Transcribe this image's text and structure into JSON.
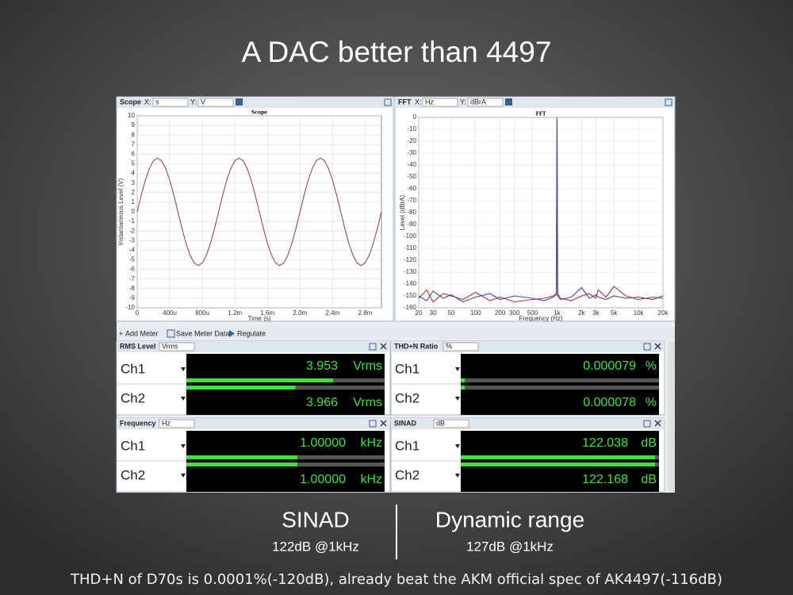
{
  "title": "A DAC better than 4497",
  "scope_panel": {
    "name": "Scope",
    "x_label": "X:",
    "x_unit": "s",
    "y_label": "Y:",
    "y_unit": "V"
  },
  "fft_panel": {
    "name": "FFT",
    "x_label": "X:",
    "x_unit": "Hz",
    "y_label": "Y:",
    "y_unit": "dBrA"
  },
  "chart_data": [
    {
      "type": "line",
      "title": "Scope",
      "x_axis_label": "Time (s)",
      "y_axis_label": "Instantaneous Level (V)",
      "x": [
        0,
        5e-05,
        0.0001,
        0.00015,
        0.0002,
        0.00025,
        0.0003,
        0.00035,
        0.0004,
        0.00045,
        0.0005,
        0.00055,
        0.0006,
        0.00065,
        0.0007,
        0.00075,
        0.0008,
        0.00085,
        0.0009,
        0.00095,
        0.001,
        0.00105,
        0.0011,
        0.00115,
        0.0012,
        0.00125,
        0.0013,
        0.00135,
        0.0014,
        0.00145,
        0.0015,
        0.00155,
        0.0016,
        0.00165,
        0.0017,
        0.00175,
        0.0018,
        0.00185,
        0.0019,
        0.00195,
        0.002,
        0.00205,
        0.0021,
        0.00215,
        0.0022,
        0.00225,
        0.0023,
        0.00235,
        0.0024,
        0.00245,
        0.0025,
        0.00255,
        0.0026,
        0.00265,
        0.0027,
        0.00275,
        0.0028,
        0.00285,
        0.0029,
        0.00295,
        0.003
      ],
      "series": [
        {
          "color": "#9c4a5a",
          "values": [
            0,
            1.73,
            3.29,
            4.53,
            5.33,
            5.6,
            5.33,
            4.53,
            3.29,
            1.73,
            0,
            -1.73,
            -3.29,
            -4.53,
            -5.33,
            -5.6,
            -5.33,
            -4.53,
            -3.29,
            -1.73,
            0,
            1.73,
            3.29,
            4.53,
            5.33,
            5.6,
            5.33,
            4.53,
            3.29,
            1.73,
            0,
            -1.73,
            -3.29,
            -4.53,
            -5.33,
            -5.6,
            -5.33,
            -4.53,
            -3.29,
            -1.73,
            0,
            1.73,
            3.29,
            4.53,
            5.33,
            5.6,
            5.33,
            4.53,
            3.29,
            1.73,
            0,
            -1.73,
            -3.29,
            -4.53,
            -5.33,
            -5.6,
            -5.33,
            -4.53,
            -3.29,
            -1.73,
            0
          ]
        }
      ],
      "xlim": [
        0,
        0.003
      ],
      "xticks": [
        0,
        {
          "value": 0.0004,
          "label": "400u"
        },
        {
          "value": 0.0008,
          "label": "800u"
        },
        {
          "value": 0.0012,
          "label": "1.2m"
        },
        {
          "value": 0.0016,
          "label": "1.6m"
        },
        {
          "value": 0.002,
          "label": "2.0m"
        },
        {
          "value": 0.0024,
          "label": "2.4m"
        },
        {
          "value": 0.0028,
          "label": "2.8m"
        }
      ],
      "ylim": [
        -10,
        10
      ],
      "yticks": [
        -10,
        -9,
        -8,
        -7,
        -6,
        -5,
        -4,
        -3,
        -2,
        -1,
        0,
        1,
        2,
        3,
        4,
        5,
        6,
        7,
        8,
        9,
        10
      ],
      "grid": true,
      "log_x": false
    },
    {
      "type": "line",
      "title": "FFT",
      "x_axis_label": "Frequency (Hz)",
      "y_axis_label": "Level (dBrA)",
      "x": [
        20,
        25,
        30,
        40,
        50,
        70,
        100,
        150,
        200,
        300,
        500,
        700,
        900,
        980,
        1000,
        1020,
        1100,
        1500,
        2000,
        2500,
        3000,
        3200,
        4000,
        5000,
        7000,
        10000,
        15000,
        20000
      ],
      "series": [
        {
          "color": "#b0303f",
          "values": [
            -152,
            -145,
            -155,
            -148,
            -150,
            -153,
            -147,
            -154,
            -151,
            -155,
            -153,
            -152,
            -150,
            -148,
            0,
            -148,
            -152,
            -154,
            -150,
            -148,
            -152,
            -145,
            -151,
            -142,
            -150,
            -153,
            -151,
            -152
          ]
        },
        {
          "color": "#3a4f9a",
          "values": [
            -150,
            -154,
            -146,
            -152,
            -149,
            -155,
            -151,
            -148,
            -153,
            -150,
            -152,
            -154,
            -151,
            -149,
            -2,
            -150,
            -153,
            -151,
            -143,
            -152,
            -149,
            -151,
            -153,
            -150,
            -152,
            -151,
            -153,
            -150
          ]
        }
      ],
      "xlim": [
        20,
        20000
      ],
      "xticks": [
        20,
        30,
        50,
        100,
        200,
        300,
        500,
        {
          "value": 1000,
          "label": "1k"
        },
        {
          "value": 2000,
          "label": "2k"
        },
        {
          "value": 3000,
          "label": "3k"
        },
        {
          "value": 5000,
          "label": "5k"
        },
        {
          "value": 10000,
          "label": "10k"
        },
        {
          "value": 20000,
          "label": "20k"
        }
      ],
      "ylim": [
        -160,
        0
      ],
      "yticks": [
        0,
        -10,
        -20,
        -30,
        -40,
        -50,
        -60,
        -70,
        -80,
        -90,
        -100,
        -110,
        -120,
        -130,
        -140,
        -150,
        -160
      ],
      "grid": true,
      "log_x": true
    }
  ],
  "toolbar": [
    "Add Meter",
    "Save Meter Data",
    "Regulate"
  ],
  "meters": [
    {
      "name": "RMS Level",
      "unit": "Vrms",
      "channels": [
        {
          "label": "Ch1",
          "value": "3.953",
          "unit": "Vrms"
        },
        {
          "label": "Ch2",
          "value": "3.966",
          "unit": "Vrms"
        }
      ]
    },
    {
      "name": "THD+N Ratio",
      "unit": "%",
      "channels": [
        {
          "label": "Ch1",
          "value": "0.000079",
          "unit": "%"
        },
        {
          "label": "Ch2",
          "value": "0.000078",
          "unit": "%"
        }
      ]
    },
    {
      "name": "Frequency",
      "unit": "Hz",
      "channels": [
        {
          "label": "Ch1",
          "value": "1.00000",
          "unit": "kHz"
        },
        {
          "label": "Ch2",
          "value": "1.00000",
          "unit": "kHz"
        }
      ]
    },
    {
      "name": "SINAD",
      "unit": "dB",
      "channels": [
        {
          "label": "Ch1",
          "value": "122.038",
          "unit": "dB"
        },
        {
          "label": "Ch2",
          "value": "122.168",
          "unit": "dB"
        }
      ]
    }
  ],
  "summary": [
    {
      "label": "SINAD",
      "detail": "122dB @1kHz"
    },
    {
      "label": "Dynamic range",
      "detail": "127dB @1kHz"
    }
  ],
  "footnote": "THD+N of D70s is 0.0001%(-120dB), already beat the AKM official spec of AK4497(-116dB)"
}
